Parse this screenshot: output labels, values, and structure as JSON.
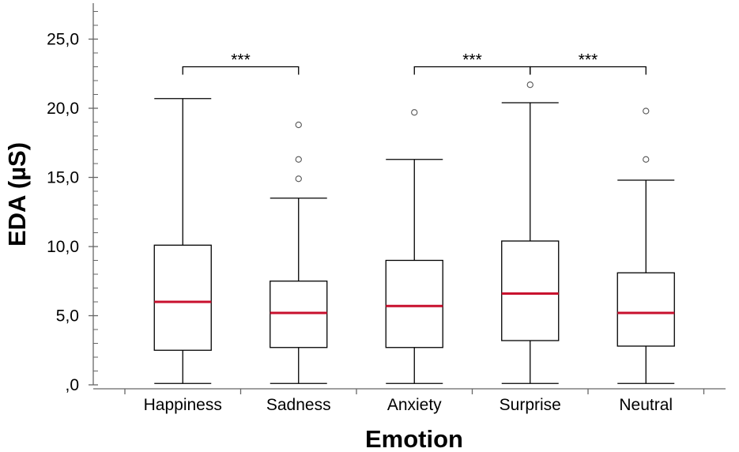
{
  "chart_data": {
    "type": "boxplot",
    "xlabel": "Emotion",
    "ylabel": "EDA (µS)",
    "ylim": [
      0,
      27.5
    ],
    "yticks": [
      {
        "value": 0,
        "label": ",0"
      },
      {
        "value": 5,
        "label": "5,0"
      },
      {
        "value": 10,
        "label": "10,0"
      },
      {
        "value": 15,
        "label": "15,0"
      },
      {
        "value": 20,
        "label": "20,0"
      },
      {
        "value": 25,
        "label": "25,0"
      }
    ],
    "median_color": "#c8102e",
    "categories": [
      "Happiness",
      "Sadness",
      "Anxiety",
      "Surprise",
      "Neutral"
    ],
    "boxes": [
      {
        "category": "Happiness",
        "min": 0.1,
        "q1": 2.5,
        "median": 6.0,
        "q3": 10.1,
        "max": 20.7,
        "outliers": []
      },
      {
        "category": "Sadness",
        "min": 0.1,
        "q1": 2.7,
        "median": 5.2,
        "q3": 7.5,
        "max": 13.5,
        "outliers": [
          14.9,
          16.3,
          18.8
        ]
      },
      {
        "category": "Anxiety",
        "min": 0.1,
        "q1": 2.7,
        "median": 5.7,
        "q3": 9.0,
        "max": 16.3,
        "outliers": [
          19.7
        ]
      },
      {
        "category": "Surprise",
        "min": 0.1,
        "q1": 3.2,
        "median": 6.6,
        "q3": 10.4,
        "max": 20.4,
        "outliers": [
          21.7
        ]
      },
      {
        "category": "Neutral",
        "min": 0.1,
        "q1": 2.8,
        "median": 5.2,
        "q3": 8.1,
        "max": 14.8,
        "outliers": [
          16.3,
          19.8
        ]
      }
    ],
    "significance": [
      {
        "from": "Happiness",
        "to": "Sadness",
        "label": "***",
        "level": 23.0
      },
      {
        "from": "Anxiety",
        "to": "Surprise",
        "label": "***",
        "level": 23.0
      },
      {
        "from": "Surprise",
        "to": "Neutral",
        "label": "***",
        "level": 23.0
      }
    ]
  }
}
